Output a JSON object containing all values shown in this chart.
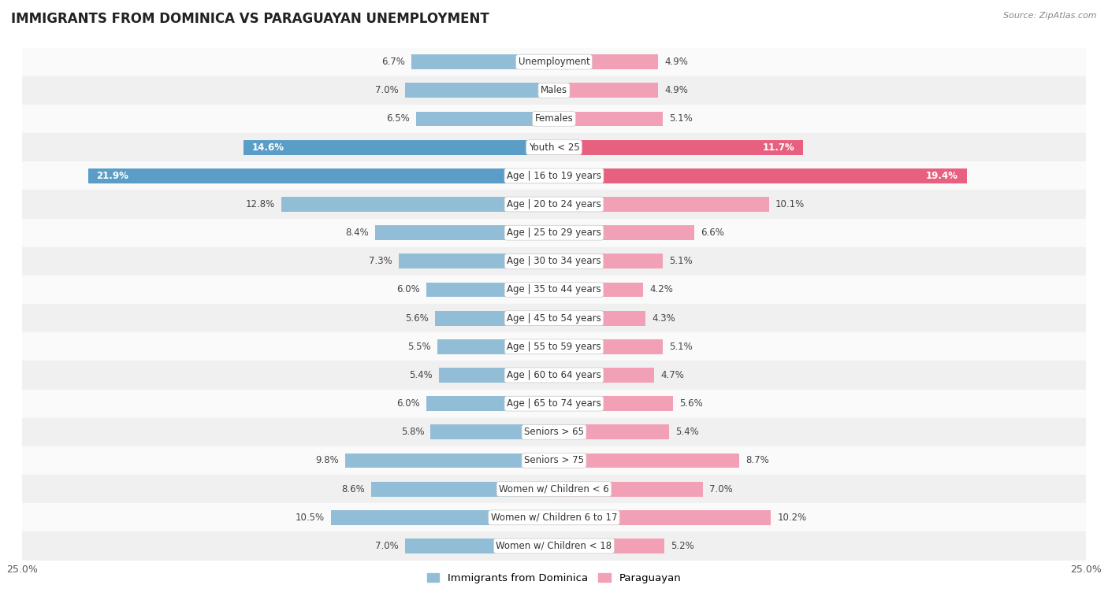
{
  "title": "IMMIGRANTS FROM DOMINICA VS PARAGUAYAN UNEMPLOYMENT",
  "source": "Source: ZipAtlas.com",
  "categories": [
    "Unemployment",
    "Males",
    "Females",
    "Youth < 25",
    "Age | 16 to 19 years",
    "Age | 20 to 24 years",
    "Age | 25 to 29 years",
    "Age | 30 to 34 years",
    "Age | 35 to 44 years",
    "Age | 45 to 54 years",
    "Age | 55 to 59 years",
    "Age | 60 to 64 years",
    "Age | 65 to 74 years",
    "Seniors > 65",
    "Seniors > 75",
    "Women w/ Children < 6",
    "Women w/ Children 6 to 17",
    "Women w/ Children < 18"
  ],
  "dominica_values": [
    6.7,
    7.0,
    6.5,
    14.6,
    21.9,
    12.8,
    8.4,
    7.3,
    6.0,
    5.6,
    5.5,
    5.4,
    6.0,
    5.8,
    9.8,
    8.6,
    10.5,
    7.0
  ],
  "paraguayan_values": [
    4.9,
    4.9,
    5.1,
    11.7,
    19.4,
    10.1,
    6.6,
    5.1,
    4.2,
    4.3,
    5.1,
    4.7,
    5.6,
    5.4,
    8.7,
    7.0,
    10.2,
    5.2
  ],
  "dominica_color": "#92bdd6",
  "paraguayan_color": "#f2a0b5",
  "dominica_highlight_color": "#5a9ec8",
  "paraguayan_highlight_color": "#e86080",
  "row_bg_light": "#f0f0f0",
  "row_bg_white": "#fafafa",
  "xlim": 25.0,
  "bar_height": 0.52,
  "title_fontsize": 12,
  "label_fontsize": 8.5,
  "category_fontsize": 8.5,
  "legend_fontsize": 9.5,
  "highlight_threshold_dom": 14.6,
  "highlight_threshold_par": 11.7
}
